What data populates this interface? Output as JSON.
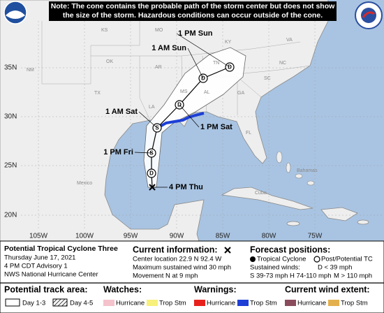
{
  "header": {
    "note": "Note: The cone contains the probable path of the storm center but does not show the size of the storm. Hazardous conditions can occur outside of the cone."
  },
  "map": {
    "place_labels": [
      "KS",
      "MO",
      "KY",
      "VA",
      "NM",
      "OK",
      "AR",
      "TN",
      "NC",
      "TX",
      "MS",
      "AL",
      "GA",
      "SC",
      "LA",
      "FL",
      "Mexico",
      "Cuba",
      "Bahamas"
    ],
    "lat_labels": [
      "35N",
      "30N",
      "25N",
      "20N"
    ],
    "lon_labels": [
      "105W",
      "100W",
      "95W",
      "90W",
      "85W",
      "80W",
      "75W"
    ],
    "track": [
      {
        "label": "4 PM Thu"
      },
      {
        "symbol": "D"
      },
      {
        "label": "1 PM Fri",
        "symbol": "S"
      },
      {
        "label": "1 AM Sat",
        "symbol": "S"
      },
      {
        "label": "1 PM Sat",
        "symbol": "D"
      },
      {
        "label": "1 AM Sun",
        "symbol": "D"
      },
      {
        "label": "1 PM Sun",
        "symbol": "D"
      }
    ]
  },
  "info": {
    "storm_name": "Potential Tropical Cyclone Three",
    "date": "Thursday June 17, 2021",
    "advisory": "4 PM CDT Advisory 1",
    "agency": "NWS National Hurricane Center"
  },
  "current": {
    "title": "Current information:",
    "lines": [
      "Center location 22.9 N 92.4 W",
      "Maximum sustained wind 30 mph",
      "Movement N at 9 mph"
    ]
  },
  "forecast": {
    "title": "Forecast positions:",
    "tropical": "Tropical Cyclone",
    "post": "Post/Potential TC",
    "winds_title": "Sustained winds:",
    "scale": [
      "D < 39 mph",
      "S 39-73 mph",
      "H 74-110 mph",
      "M > 110 mph"
    ]
  },
  "legend": {
    "track_title": "Potential track area:",
    "track": [
      "Day 1-3",
      "Day 4-5"
    ],
    "watches_title": "Watches:",
    "watches": [
      "Hurricane",
      "Trop Stm"
    ],
    "warnings_title": "Warnings:",
    "warnings": [
      "Hurricane",
      "Trop Stm"
    ],
    "wind_title": "Current wind extent:",
    "wind": [
      "Hurricane",
      "Trop Stm"
    ]
  }
}
